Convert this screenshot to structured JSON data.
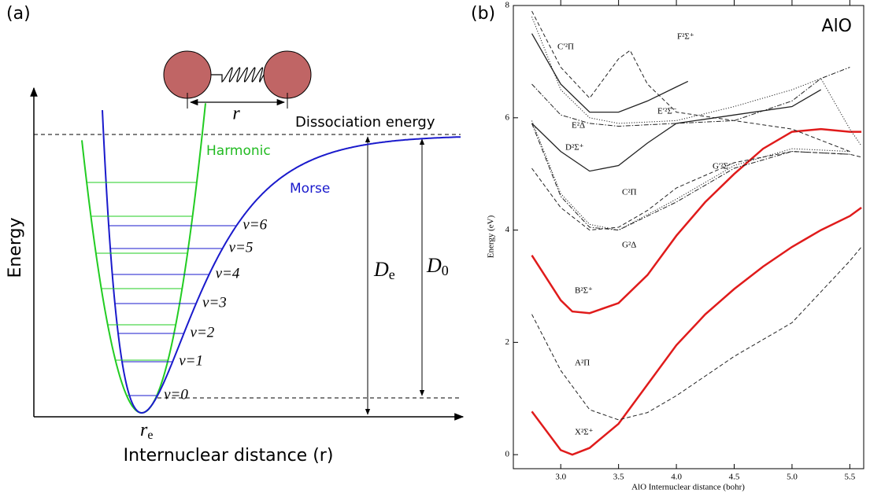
{
  "panel_a": {
    "label": "(a)",
    "y_axis_label": "Energy",
    "x_axis_label": "Internuclear distance (r)",
    "dissociation_label": "Dissociation energy",
    "harmonic_label": "Harmonic",
    "morse_label": "Morse",
    "bond_label": "r",
    "equilibrium_label": {
      "symbol": "r",
      "subscript": "e"
    },
    "de_label": {
      "symbol": "D",
      "subscript": "e"
    },
    "d0_label": {
      "symbol": "D",
      "subscript": "0"
    },
    "levels": [
      "v=0",
      "v=1",
      "v=2",
      "v=3",
      "v=4",
      "v=5",
      "v=6"
    ]
  },
  "chart_data": {
    "type": "line",
    "panel_label": "(b)",
    "title": "AlO",
    "x_label": "AlO Internuclear distance (bohr)",
    "y_label": "Energy (eV)",
    "xlim": [
      2.59,
      5.62
    ],
    "ylim": [
      -0.25,
      8
    ],
    "xticks": [
      {
        "value": 3,
        "label": "3.0"
      },
      3.5,
      {
        "value": 4,
        "label": "4.0"
      },
      4.5,
      {
        "value": 5,
        "label": "5.0"
      },
      5.5
    ],
    "yticks": [
      0,
      2,
      4,
      6,
      8
    ],
    "series": [
      {
        "name": "X²Σ⁺",
        "color": "#e01b1b",
        "style": "solid",
        "width": 2.5,
        "x": [
          2.75,
          3.0,
          3.1,
          3.25,
          3.5,
          3.75,
          4.0,
          4.25,
          4.5,
          4.75,
          5.0,
          5.25,
          5.5,
          5.6
        ],
        "values": [
          0.77,
          0.08,
          0.0,
          0.12,
          0.55,
          1.25,
          1.95,
          2.5,
          2.95,
          3.35,
          3.7,
          4.0,
          4.25,
          4.4
        ]
      },
      {
        "name": "B²Σ⁺",
        "color": "#e01b1b",
        "style": "solid",
        "width": 2.5,
        "x": [
          2.75,
          3.0,
          3.1,
          3.25,
          3.5,
          3.75,
          4.0,
          4.25,
          4.5,
          4.75,
          5.0,
          5.25,
          5.5,
          5.6
        ],
        "values": [
          3.55,
          2.75,
          2.55,
          2.52,
          2.7,
          3.2,
          3.9,
          4.5,
          5.0,
          5.45,
          5.75,
          5.8,
          5.75,
          5.75
        ]
      },
      {
        "name": "A²Π",
        "color": "#222222",
        "style": "dashed",
        "width": 1,
        "x": [
          2.75,
          3.0,
          3.25,
          3.5,
          3.75,
          4.0,
          4.5,
          5.0,
          5.5,
          5.6
        ],
        "values": [
          2.5,
          1.5,
          0.8,
          0.62,
          0.75,
          1.05,
          1.75,
          2.35,
          3.45,
          3.7
        ]
      },
      {
        "name": "C²Π",
        "color": "#222222",
        "style": "dashed",
        "width": 1,
        "x": [
          2.75,
          3.0,
          3.25,
          3.5,
          3.75,
          4.0,
          4.5,
          5.0,
          5.5,
          5.6
        ],
        "values": [
          5.1,
          4.4,
          4.0,
          4.05,
          4.35,
          4.75,
          5.2,
          5.4,
          5.35,
          5.3
        ]
      },
      {
        "name": "D²Σ⁺",
        "color": "#222222",
        "style": "solid",
        "width": 1.3,
        "x": [
          2.75,
          3.0,
          3.25,
          3.5,
          3.75,
          4.0,
          4.5,
          5.0,
          5.25
        ],
        "values": [
          5.9,
          5.4,
          5.05,
          5.15,
          5.55,
          5.9,
          6.05,
          6.2,
          6.5
        ]
      },
      {
        "name": "F²Σ⁺",
        "color": "#222222",
        "style": "solid",
        "width": 1.3,
        "x": [
          2.75,
          3.0,
          3.25,
          3.5,
          3.75,
          4.0,
          4.1
        ],
        "values": [
          7.5,
          6.6,
          6.1,
          6.1,
          6.3,
          6.55,
          6.65
        ]
      },
      {
        "name": "C′²Π",
        "color": "#222222",
        "style": "dashed",
        "width": 1,
        "x": [
          2.75,
          3.0,
          3.25,
          3.5,
          3.6,
          3.75,
          4.0,
          4.5,
          5.0,
          5.5
        ],
        "values": [
          7.9,
          6.9,
          6.35,
          7.05,
          7.2,
          6.6,
          6.1,
          5.95,
          5.8,
          5.4
        ]
      },
      {
        "name": "E²Δ",
        "color": "#222222",
        "style": "dashdot",
        "width": 1,
        "x": [
          2.75,
          3.0,
          3.25,
          3.5,
          4.0,
          4.5,
          5.0,
          5.25,
          5.5
        ],
        "values": [
          6.6,
          6.05,
          5.9,
          5.85,
          5.9,
          5.95,
          6.3,
          6.7,
          6.9
        ]
      },
      {
        "name": "E′²Σ⁻",
        "color": "#222222",
        "style": "dotted",
        "width": 1,
        "x": [
          2.75,
          3.0,
          3.25,
          3.5,
          4.0,
          4.5,
          5.0,
          5.25,
          5.5,
          5.6
        ],
        "values": [
          7.8,
          6.5,
          6.0,
          5.9,
          5.95,
          6.2,
          6.5,
          6.7,
          5.8,
          5.5
        ]
      },
      {
        "name": "G²Δ",
        "color": "#222222",
        "style": "dashdot",
        "width": 1,
        "x": [
          2.75,
          3.0,
          3.25,
          3.5,
          4.0,
          4.5,
          5.0,
          5.5
        ],
        "values": [
          5.9,
          4.6,
          4.05,
          4.0,
          4.5,
          5.1,
          5.4,
          5.35
        ]
      },
      {
        "name": "G′²Σ⁻",
        "color": "#222222",
        "style": "dotted",
        "width": 1,
        "x": [
          2.75,
          3.0,
          3.25,
          3.5,
          4.0,
          4.5,
          5.0,
          5.5
        ],
        "values": [
          5.95,
          4.65,
          4.1,
          4.0,
          4.55,
          5.15,
          5.45,
          5.4
        ]
      }
    ]
  }
}
